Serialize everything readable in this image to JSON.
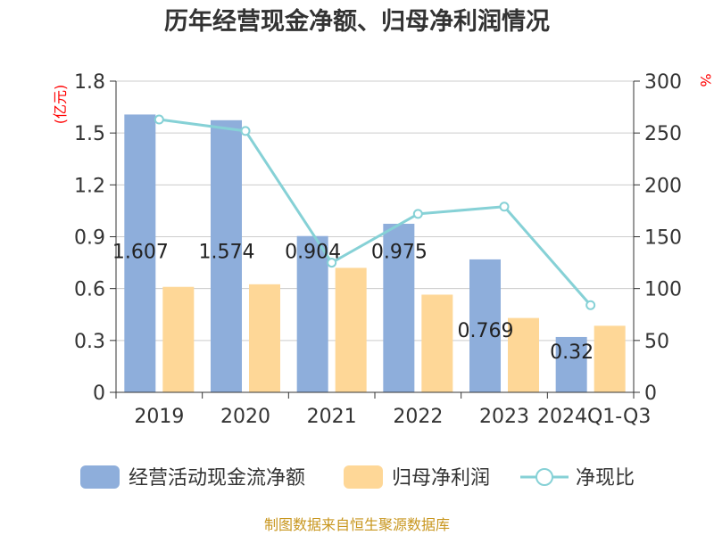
{
  "chart_data": {
    "type": "bar",
    "title": "历年经营现金净额、归母净利润情况",
    "categories": [
      "2019",
      "2020",
      "2021",
      "2022",
      "2023",
      "2024Q1-Q3"
    ],
    "y_left": {
      "unit": "(亿元)",
      "ylim": [
        0,
        1.8
      ],
      "ticks": [
        "0",
        "0.3",
        "0.6",
        "0.9",
        "1.2",
        "1.5",
        "1.8"
      ]
    },
    "y_right": {
      "unit": "%",
      "ylim": [
        0,
        300
      ],
      "ticks": [
        "0",
        "50",
        "100",
        "150",
        "200",
        "250",
        "300"
      ]
    },
    "series": [
      {
        "name": "经营活动现金流净额",
        "type": "bar",
        "axis": "left",
        "color": "#8eaedb",
        "values": [
          1.607,
          1.574,
          0.904,
          0.975,
          0.769,
          0.32
        ],
        "labels": [
          "1.607",
          "1.574",
          "0.904",
          "0.975",
          "0.769",
          "0.32"
        ]
      },
      {
        "name": "归母净利润",
        "type": "bar",
        "axis": "left",
        "color": "#fed797",
        "values": [
          0.61,
          0.625,
          0.72,
          0.565,
          0.43,
          0.385
        ]
      },
      {
        "name": "净现比",
        "type": "line",
        "axis": "right",
        "color": "#86d1d6",
        "values": [
          263,
          252,
          125,
          172,
          179,
          84
        ]
      }
    ],
    "grid": true,
    "legend_position": "bottom"
  },
  "source_text": "制图数据来自恒生聚源数据库"
}
